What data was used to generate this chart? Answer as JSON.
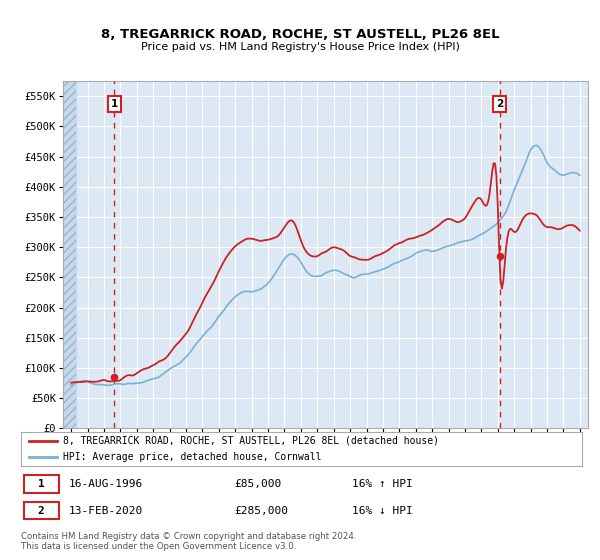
{
  "title": "8, TREGARRICK ROAD, ROCHE, ST AUSTELL, PL26 8EL",
  "subtitle": "Price paid vs. HM Land Registry's House Price Index (HPI)",
  "legend_line1": "8, TREGARRICK ROAD, ROCHE, ST AUSTELL, PL26 8EL (detached house)",
  "legend_line2": "HPI: Average price, detached house, Cornwall",
  "footnote": "Contains HM Land Registry data © Crown copyright and database right 2024.\nThis data is licensed under the Open Government Licence v3.0.",
  "point1_x": 1996.62,
  "point1_y": 85000,
  "point2_x": 2020.12,
  "point2_y": 285000,
  "vline1_x": 1996.62,
  "vline2_x": 2020.12,
  "ylim": [
    0,
    575000
  ],
  "xlim_left": 1993.5,
  "xlim_right": 2025.5,
  "fig_bg_color": "#ffffff",
  "plot_bg_color": "#dce9f5",
  "grid_color": "#ffffff",
  "hpi_color": "#7ab0d4",
  "price_color": "#cc2222",
  "vline_color": "#cc2222",
  "ytick_labels": [
    "£0",
    "£50K",
    "£100K",
    "£150K",
    "£200K",
    "£250K",
    "£300K",
    "£350K",
    "£400K",
    "£450K",
    "£500K",
    "£550K"
  ],
  "ytick_values": [
    0,
    50000,
    100000,
    150000,
    200000,
    250000,
    300000,
    350000,
    400000,
    450000,
    500000,
    550000
  ],
  "hpi_keypoints": [
    [
      1994.0,
      72000
    ],
    [
      1995.0,
      75000
    ],
    [
      1996.0,
      77000
    ],
    [
      1997.0,
      82000
    ],
    [
      1998.0,
      88000
    ],
    [
      1999.0,
      95000
    ],
    [
      2000.0,
      108000
    ],
    [
      2001.0,
      130000
    ],
    [
      2002.0,
      165000
    ],
    [
      2003.0,
      200000
    ],
    [
      2004.0,
      230000
    ],
    [
      2005.0,
      240000
    ],
    [
      2006.0,
      255000
    ],
    [
      2007.0,
      295000
    ],
    [
      2007.5,
      302000
    ],
    [
      2008.0,
      285000
    ],
    [
      2009.0,
      258000
    ],
    [
      2010.0,
      270000
    ],
    [
      2011.0,
      260000
    ],
    [
      2012.0,
      255000
    ],
    [
      2013.0,
      265000
    ],
    [
      2014.0,
      278000
    ],
    [
      2015.0,
      290000
    ],
    [
      2016.0,
      298000
    ],
    [
      2017.0,
      308000
    ],
    [
      2018.0,
      315000
    ],
    [
      2019.0,
      325000
    ],
    [
      2020.0,
      340000
    ],
    [
      2020.5,
      355000
    ],
    [
      2021.0,
      390000
    ],
    [
      2021.5,
      420000
    ],
    [
      2022.0,
      455000
    ],
    [
      2022.5,
      462000
    ],
    [
      2023.0,
      440000
    ],
    [
      2023.5,
      425000
    ],
    [
      2024.0,
      418000
    ],
    [
      2024.5,
      420000
    ],
    [
      2025.0,
      415000
    ]
  ],
  "price_keypoints": [
    [
      1994.0,
      76000
    ],
    [
      1995.0,
      80000
    ],
    [
      1996.0,
      82000
    ],
    [
      1996.62,
      85000
    ],
    [
      1997.0,
      90000
    ],
    [
      1998.0,
      100000
    ],
    [
      1999.0,
      112000
    ],
    [
      2000.0,
      135000
    ],
    [
      2001.0,
      165000
    ],
    [
      2002.0,
      210000
    ],
    [
      2003.0,
      260000
    ],
    [
      2004.0,
      300000
    ],
    [
      2005.0,
      310000
    ],
    [
      2006.0,
      320000
    ],
    [
      2007.0,
      345000
    ],
    [
      2007.5,
      352000
    ],
    [
      2008.0,
      320000
    ],
    [
      2009.0,
      295000
    ],
    [
      2010.0,
      310000
    ],
    [
      2011.0,
      300000
    ],
    [
      2012.0,
      295000
    ],
    [
      2013.0,
      305000
    ],
    [
      2014.0,
      318000
    ],
    [
      2015.0,
      330000
    ],
    [
      2016.0,
      340000
    ],
    [
      2017.0,
      355000
    ],
    [
      2018.0,
      365000
    ],
    [
      2019.0,
      390000
    ],
    [
      2019.5,
      400000
    ],
    [
      2020.0,
      385000
    ],
    [
      2020.12,
      285000
    ],
    [
      2020.5,
      310000
    ],
    [
      2021.0,
      340000
    ],
    [
      2021.5,
      360000
    ],
    [
      2022.0,
      375000
    ],
    [
      2022.5,
      370000
    ],
    [
      2023.0,
      355000
    ],
    [
      2023.5,
      350000
    ],
    [
      2024.0,
      355000
    ],
    [
      2024.5,
      360000
    ],
    [
      2025.0,
      355000
    ]
  ]
}
